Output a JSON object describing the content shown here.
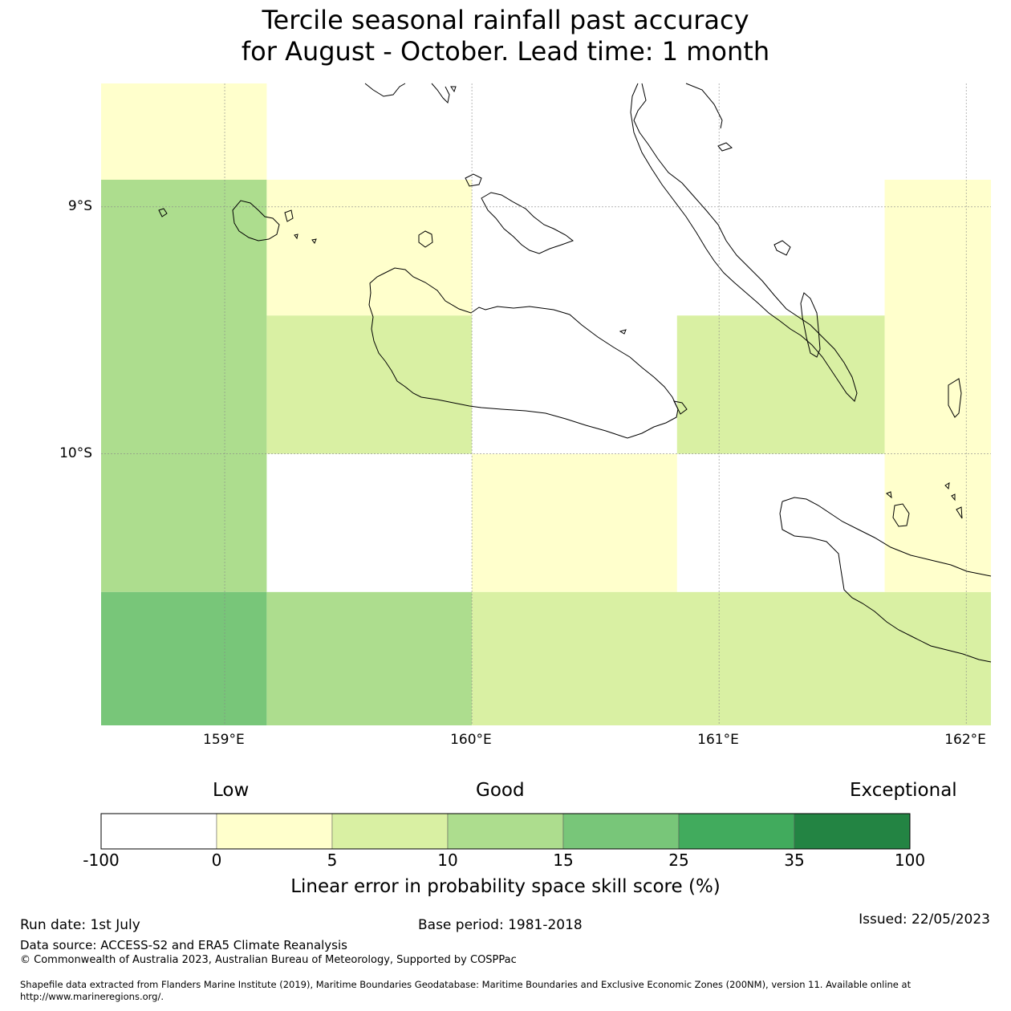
{
  "title": {
    "line1": "Tercile seasonal rainfall past accuracy",
    "line2": "for August - October. Lead time: 1 month"
  },
  "map": {
    "lon_labels": [
      "159°E",
      "160°E",
      "161°E",
      "162°E"
    ],
    "lat_labels": [
      "9°S",
      "10°S"
    ],
    "lon_values": [
      159,
      160,
      161,
      162
    ],
    "lat_values": [
      -9,
      -10
    ],
    "extent": {
      "lon_min": 158.5,
      "lon_max": 162.1,
      "lat_min": -11.1,
      "lat_max": -8.5
    },
    "grid_cells": [
      {
        "lon0": 158.5,
        "lon1": 159.17,
        "lat0": -8.5,
        "lat1": -8.89,
        "class": "0-5"
      },
      {
        "lon0": 158.5,
        "lon1": 159.17,
        "lat0": -8.89,
        "lat1": -10.56,
        "class": "10-15"
      },
      {
        "lon0": 158.5,
        "lon1": 159.17,
        "lat0": -10.56,
        "lat1": -11.1,
        "class": "15-25"
      },
      {
        "lon0": 159.17,
        "lon1": 160.0,
        "lat0": -8.89,
        "lat1": -9.44,
        "class": "0-5"
      },
      {
        "lon0": 159.17,
        "lon1": 160.0,
        "lat0": -9.44,
        "lat1": -10.0,
        "class": "5-10"
      },
      {
        "lon0": 159.17,
        "lon1": 160.0,
        "lat0": -10.56,
        "lat1": -11.1,
        "class": "10-15"
      },
      {
        "lon0": 160.0,
        "lon1": 160.83,
        "lat0": -10.0,
        "lat1": -10.56,
        "class": "0-5"
      },
      {
        "lon0": 160.0,
        "lon1": 162.1,
        "lat0": -10.56,
        "lat1": -11.1,
        "class": "5-10"
      },
      {
        "lon0": 160.83,
        "lon1": 161.67,
        "lat0": -9.44,
        "lat1": -10.0,
        "class": "5-10"
      },
      {
        "lon0": 161.67,
        "lon1": 162.1,
        "lat0": -8.89,
        "lat1": -10.56,
        "class": "0-5"
      }
    ]
  },
  "colorbar": {
    "category_labels": {
      "low": "Low",
      "good": "Good",
      "exceptional": "Exceptional"
    },
    "ticks": [
      "-100",
      "0",
      "5",
      "10",
      "15",
      "25",
      "35",
      "100"
    ],
    "colors": [
      "#ffffff",
      "#ffffcc",
      "#d9f0a3",
      "#addd8e",
      "#78c679",
      "#41ab5d",
      "#238443"
    ],
    "classes": [
      "-100-0",
      "0-5",
      "5-10",
      "10-15",
      "15-25",
      "25-35",
      "35-100"
    ],
    "axis_label": "Linear error in probability space skill score (%)"
  },
  "footer": {
    "run_date": "Run date: 1st July",
    "base_period": "Base period: 1981-2018",
    "issued": "Issued: 22/05/2023",
    "data_source": "Data source: ACCESS-S2 and ERA5 Climate Reanalysis",
    "copyright": "© Commonwealth of Australia 2023, Australian Bureau of Meteorology, Supported by COSPPac",
    "shapefile_line1": "Shapefile data extracted from Flanders Marine Institute (2019), Maritime Boundaries Geodatabase: Maritime Boundaries and Exclusive Economic Zones (200NM), version 11. Available online at",
    "shapefile_line2": "http://www.marineregions.org/."
  }
}
